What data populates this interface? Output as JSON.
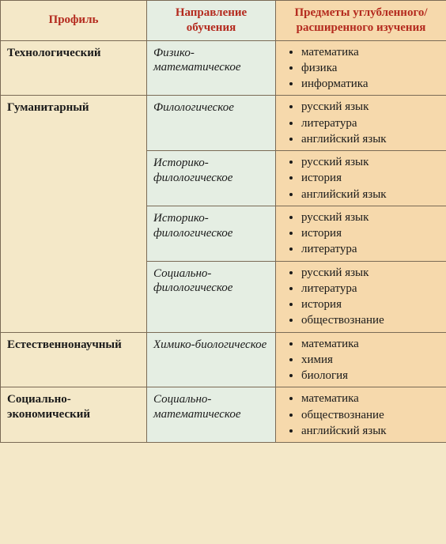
{
  "colors": {
    "page_bg": "#f4e8c8",
    "direction_bg": "#e5eee3",
    "subjects_bg": "#f6d9ac",
    "header_text": "#b42a1e",
    "border": "#7a6a55",
    "body_text": "#1a1a1a"
  },
  "headers": {
    "profile": "Профиль",
    "direction": "Направление обучения",
    "subjects": "Предметы углубленного/расширенного изучения"
  },
  "rows": [
    {
      "profile": "Технологический",
      "rowspan": 1,
      "direction": "Физико-математическое",
      "subjects": [
        "математика",
        "физика",
        "информатика"
      ]
    },
    {
      "profile": "Гуманитарный",
      "rowspan": 4,
      "direction": "Филологическое",
      "subjects": [
        "русский язык",
        "литература",
        "английский язык"
      ]
    },
    {
      "direction": "Историко-филологическое",
      "subjects": [
        "русский язык",
        "история",
        "английский язык"
      ]
    },
    {
      "direction": "Историко-филологическое",
      "subjects": [
        "русский язык",
        "история",
        "литература"
      ]
    },
    {
      "direction": "Социально-филологическое",
      "subjects": [
        "русский язык",
        "литература",
        "история",
        "обществознание"
      ]
    },
    {
      "profile": "Естественнонаучный",
      "rowspan": 1,
      "direction": "Химико-биологическое",
      "subjects": [
        "математика",
        "химия",
        "биология"
      ]
    },
    {
      "profile": "Социально-экономический",
      "rowspan": 1,
      "direction": "Социально-математическое",
      "subjects": [
        "математика",
        "обществознание",
        "английский язык"
      ]
    }
  ],
  "fonts": {
    "header_size_pt": 15,
    "body_size_pt": 15
  }
}
